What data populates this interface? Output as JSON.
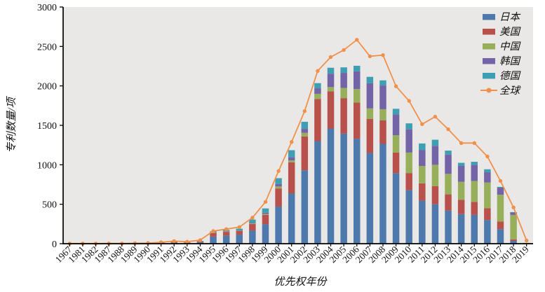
{
  "figure": {
    "background_color": "#ffffff",
    "plot_background_color": "#e9e8e6",
    "axis_color": "#000000"
  },
  "chart_data": {
    "type": "bar",
    "subtype": "stacked-bars-with-line-overlay",
    "title": "",
    "xlabel": "优先权年份",
    "ylabel": "专利数量/项",
    "ylim": [
      0,
      3000
    ],
    "yticks": [
      0,
      500,
      1000,
      1500,
      2000,
      2500,
      3000
    ],
    "grid": false,
    "legend_position": "top-right",
    "categories": [
      "1967",
      "1981",
      "1982",
      "1987",
      "1988",
      "1989",
      "1990",
      "1991",
      "1992",
      "1993",
      "1994",
      "1995",
      "1996",
      "1997",
      "1998",
      "1999",
      "2000",
      "2001",
      "2002",
      "2003",
      "2004",
      "2005",
      "2006",
      "2007",
      "2008",
      "2009",
      "2010",
      "2011",
      "2012",
      "2013",
      "2014",
      "2015",
      "2016",
      "2017",
      "2018",
      "2019"
    ],
    "series": [
      {
        "name": "日本",
        "color": "#4d79ac",
        "values": [
          0,
          0,
          0,
          0,
          0,
          0,
          3,
          8,
          15,
          10,
          20,
          90,
          100,
          115,
          165,
          245,
          470,
          635,
          930,
          1300,
          1460,
          1395,
          1330,
          1150,
          1265,
          895,
          680,
          545,
          500,
          420,
          375,
          365,
          300,
          185,
          35,
          2
        ]
      },
      {
        "name": "美国",
        "color": "#b8504b",
        "values": [
          0,
          0,
          0,
          0,
          0,
          0,
          2,
          5,
          8,
          6,
          10,
          45,
          50,
          45,
          85,
          120,
          230,
          395,
          430,
          535,
          470,
          450,
          460,
          430,
          300,
          260,
          215,
          220,
          230,
          205,
          180,
          165,
          150,
          95,
          20,
          1
        ]
      },
      {
        "name": "中国",
        "color": "#97af5a",
        "values": [
          0,
          0,
          0,
          0,
          0,
          0,
          0,
          0,
          0,
          0,
          0,
          3,
          3,
          4,
          8,
          12,
          25,
          25,
          45,
          65,
          55,
          130,
          170,
          135,
          140,
          220,
          260,
          220,
          270,
          260,
          230,
          265,
          325,
          340,
          310,
          5
        ]
      },
      {
        "name": "韩国",
        "color": "#7363a7",
        "values": [
          0,
          0,
          0,
          0,
          0,
          0,
          0,
          0,
          0,
          0,
          0,
          3,
          3,
          4,
          8,
          15,
          30,
          40,
          50,
          70,
          170,
          190,
          225,
          320,
          300,
          265,
          295,
          200,
          240,
          245,
          200,
          205,
          130,
          90,
          30,
          2
        ]
      },
      {
        "name": "德国",
        "color": "#3e9fb3",
        "values": [
          0,
          0,
          0,
          0,
          0,
          0,
          0,
          2,
          3,
          3,
          5,
          15,
          18,
          22,
          40,
          55,
          75,
          90,
          90,
          65,
          75,
          70,
          70,
          80,
          65,
          70,
          75,
          85,
          78,
          50,
          40,
          38,
          38,
          10,
          5,
          0
        ]
      }
    ],
    "line_series": {
      "name": "全球",
      "color": "#f0914b",
      "values": [
        2,
        2,
        2,
        3,
        3,
        5,
        8,
        18,
        33,
        25,
        45,
        160,
        185,
        210,
        330,
        530,
        920,
        1290,
        1680,
        2190,
        2365,
        2455,
        2585,
        2375,
        2390,
        1995,
        1810,
        1515,
        1610,
        1450,
        1275,
        1275,
        1105,
        795,
        460,
        40
      ]
    }
  }
}
